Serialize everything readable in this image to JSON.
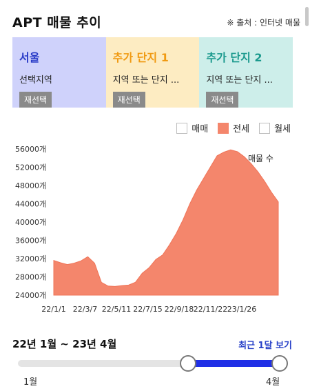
{
  "header": {
    "title": "APT 매물 추이",
    "source": "※ 출처 : 인터넷 매물"
  },
  "selectors": [
    {
      "name": "서울",
      "subtitle": "선택지역",
      "button": "재선택",
      "color": "#2b3dc8"
    },
    {
      "name": "추가 단지 1",
      "subtitle": "지역 또는 단지 ...",
      "button": "재선택",
      "color": "#f09a12"
    },
    {
      "name": "추가 단지 2",
      "subtitle": "지역 또는 단지 ...",
      "button": "재선택",
      "color": "#1c9a8e"
    }
  ],
  "legend": [
    {
      "label": "매매",
      "checked": false
    },
    {
      "label": "전세",
      "checked": true
    },
    {
      "label": "월세",
      "checked": false
    }
  ],
  "chart_data": {
    "type": "area",
    "series_label": "매물 수",
    "color": "#f4866c",
    "y_ticks": [
      "56000개",
      "52000개",
      "48000개",
      "44000개",
      "40000개",
      "36000개",
      "32000개",
      "28000개",
      "24000개"
    ],
    "x_ticks": [
      "22/1/1",
      "22/3/7",
      "22/5/11",
      "22/7/15",
      "22/9/18",
      "22/11/22",
      "23/1/26"
    ],
    "ylim": [
      24000,
      56000
    ],
    "x": [
      "22/1/1",
      "22/1/15",
      "22/2/1",
      "22/2/15",
      "22/3/1",
      "22/3/10",
      "22/3/20",
      "22/4/1",
      "22/4/10",
      "22/4/20",
      "22/5/1",
      "22/5/11",
      "22/5/25",
      "22/6/10",
      "22/6/20",
      "22/7/1",
      "22/7/15",
      "22/8/1",
      "22/8/15",
      "22/9/1",
      "22/9/18",
      "22/10/1",
      "22/10/15",
      "22/11/1",
      "22/11/22",
      "22/12/10",
      "22/12/25",
      "23/1/1",
      "23/1/10",
      "23/1/26",
      "23/2/10",
      "23/2/25",
      "23/3/10",
      "23/3/20"
    ],
    "values": [
      31600,
      31100,
      30700,
      31000,
      31500,
      32400,
      31000,
      26800,
      26000,
      25900,
      26100,
      26200,
      26800,
      28800,
      30000,
      31800,
      32800,
      35000,
      37500,
      40500,
      44000,
      47000,
      49500,
      52000,
      54500,
      55300,
      55800,
      55400,
      54300,
      52800,
      51000,
      48900,
      46500,
      44400
    ]
  },
  "range": {
    "text": "22년 1월 ~ 23년 4월",
    "recent_button": "최근 1달 보기",
    "start_label": "1월",
    "end_label": "4월",
    "start_fraction": 0.63,
    "end_fraction": 1.0
  }
}
